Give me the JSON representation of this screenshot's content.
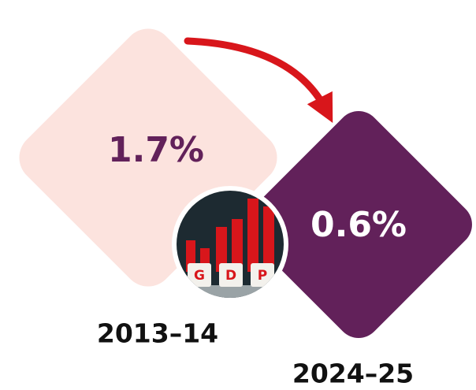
{
  "items": [
    {
      "value_label": "1.7%",
      "period": "2013–14"
    },
    {
      "value_label": "0.6%",
      "period": "2024–25"
    }
  ],
  "icon": {
    "letters": [
      "G",
      "D",
      "P"
    ]
  }
}
